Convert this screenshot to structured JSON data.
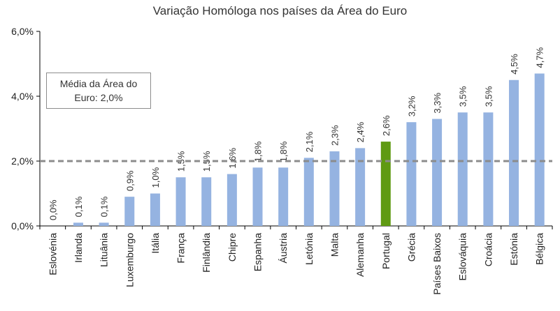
{
  "chart_data": {
    "type": "bar",
    "title": "Variação Homóloga nos países da Área do Euro",
    "xlabel": "",
    "ylabel": "",
    "ylim": [
      0,
      6
    ],
    "yticks": [
      "0,0%",
      "2,0%",
      "4,0%",
      "6,0%"
    ],
    "ytick_values": [
      0,
      2,
      4,
      6
    ],
    "categories": [
      "Eslovénia",
      "Irlanda",
      "Lituânia",
      "Luxemburgo",
      "Itália",
      "França",
      "Finlândia",
      "Chipre",
      "Espanha",
      "Áustria",
      "Letónia",
      "Malta",
      "Alemanha",
      "Portugal",
      "Grécia",
      "Países Baixos",
      "Eslováquia",
      "Croácia",
      "Estónia",
      "Bélgica"
    ],
    "values": [
      0.0,
      0.1,
      0.1,
      0.9,
      1.0,
      1.5,
      1.5,
      1.6,
      1.8,
      1.8,
      2.1,
      2.3,
      2.4,
      2.6,
      3.2,
      3.3,
      3.5,
      3.5,
      4.5,
      4.7
    ],
    "value_labels": [
      "0,0%",
      "0,1%",
      "0,1%",
      "0,9%",
      "1,0%",
      "1,5%",
      "1,5%",
      "1,6%",
      "1,8%",
      "1,8%",
      "2,1%",
      "2,3%",
      "2,4%",
      "2,6%",
      "3,2%",
      "3,3%",
      "3,5%",
      "3,5%",
      "4,5%",
      "4,7%"
    ],
    "highlight_category": "Portugal",
    "reference_line": {
      "value": 2.0,
      "style": "dashed"
    },
    "annotation": "Média da Área do Euro: 2,0%",
    "colors": {
      "bar": "#95b3e1",
      "highlight": "#5f9a12",
      "reference_line": "#8c8c8c",
      "axis": "#000000"
    },
    "grid": false,
    "legend": "none"
  }
}
